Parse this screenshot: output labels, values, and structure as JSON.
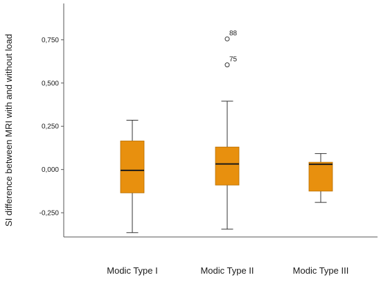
{
  "chart_data": {
    "type": "boxplot",
    "ylabel": "SI difference between MRI with and without load",
    "xlabel": "",
    "ylim": [
      -0.39,
      0.96
    ],
    "yticks": [
      -0.25,
      0.0,
      0.25,
      0.5,
      0.75
    ],
    "ytick_labels": [
      "-0,250",
      "0,000",
      "0,250",
      "0,500",
      "0,750"
    ],
    "categories": [
      "Modic Type I",
      "Modic Type II",
      "Modic Type III"
    ],
    "box_color": "#E8900E",
    "grid": false,
    "boxes": [
      {
        "category": "Modic Type I",
        "whisker_low": -0.365,
        "q1": -0.135,
        "median": -0.005,
        "q3": 0.165,
        "whisker_high": 0.285,
        "outliers": []
      },
      {
        "category": "Modic Type II",
        "whisker_low": -0.345,
        "q1": -0.09,
        "median": 0.032,
        "q3": 0.13,
        "whisker_high": 0.395,
        "outliers": [
          {
            "value": 0.755,
            "label": "88"
          },
          {
            "value": 0.605,
            "label": "75"
          }
        ]
      },
      {
        "category": "Modic Type III",
        "whisker_low": -0.19,
        "q1": -0.125,
        "median": 0.03,
        "q3": 0.042,
        "whisker_high": 0.092,
        "outliers": []
      }
    ]
  }
}
